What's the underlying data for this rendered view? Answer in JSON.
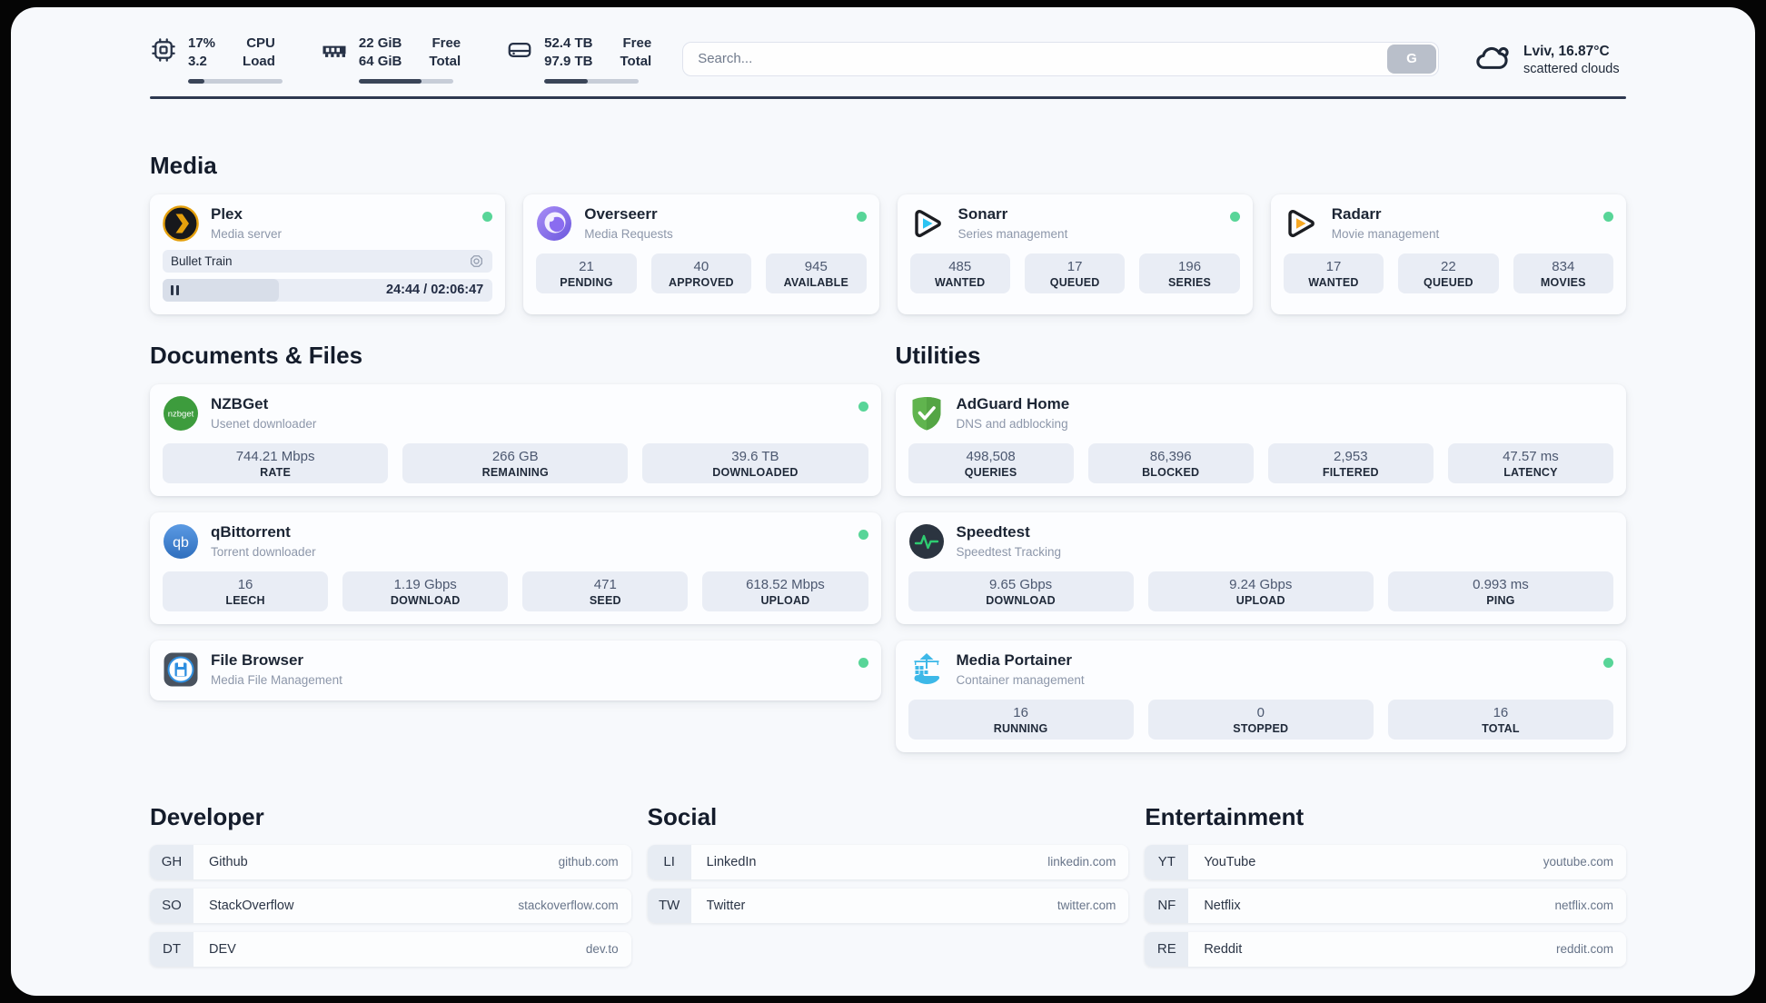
{
  "header": {
    "system_stats": [
      {
        "icon": "cpu-icon",
        "values": [
          "17%",
          "3.2"
        ],
        "labels": [
          "CPU",
          "Load"
        ],
        "usage_percent": 17
      },
      {
        "icon": "ram-icon",
        "values": [
          "22 GiB",
          "64 GiB"
        ],
        "labels": [
          "Free",
          "Total"
        ],
        "usage_percent": 66
      },
      {
        "icon": "disk-icon",
        "values": [
          "52.4 TB",
          "97.9 TB"
        ],
        "labels": [
          "Free",
          "Total"
        ],
        "usage_percent": 46
      }
    ],
    "search": {
      "placeholder": "Search...",
      "button_label": "G"
    },
    "weather": {
      "icon": "cloud-icon",
      "location_temp": "Lviv, 16.87°C",
      "condition": "scattered clouds"
    }
  },
  "sections": {
    "media": {
      "title": "Media",
      "apps": [
        {
          "name": "Plex",
          "desc": "Media server",
          "icon": "plex-icon",
          "online_dot": true,
          "now_playing": {
            "title": "Bullet Train",
            "time": "24:44 / 02:06:47"
          }
        },
        {
          "name": "Overseerr",
          "desc": "Media Requests",
          "icon": "overseerr-icon",
          "online_dot": true,
          "stats": [
            {
              "value": "21",
              "label": "PENDING"
            },
            {
              "value": "40",
              "label": "APPROVED"
            },
            {
              "value": "945",
              "label": "AVAILABLE"
            }
          ]
        },
        {
          "name": "Sonarr",
          "desc": "Series management",
          "icon": "sonarr-icon",
          "online_dot": true,
          "stats": [
            {
              "value": "485",
              "label": "WANTED"
            },
            {
              "value": "17",
              "label": "QUEUED"
            },
            {
              "value": "196",
              "label": "SERIES"
            }
          ]
        },
        {
          "name": "Radarr",
          "desc": "Movie management",
          "icon": "radarr-icon",
          "online_dot": true,
          "stats": [
            {
              "value": "17",
              "label": "WANTED"
            },
            {
              "value": "22",
              "label": "QUEUED"
            },
            {
              "value": "834",
              "label": "MOVIES"
            }
          ]
        }
      ]
    },
    "documents": {
      "title": "Documents & Files",
      "apps": [
        {
          "name": "NZBGet",
          "desc": "Usenet downloader",
          "icon": "nzbget-icon",
          "online_dot": true,
          "stats": [
            {
              "value": "744.21 Mbps",
              "label": "RATE"
            },
            {
              "value": "266 GB",
              "label": "REMAINING"
            },
            {
              "value": "39.6 TB",
              "label": "DOWNLOADED"
            }
          ]
        },
        {
          "name": "qBittorrent",
          "desc": "Torrent downloader",
          "icon": "qbittorrent-icon",
          "online_dot": true,
          "stats": [
            {
              "value": "16",
              "label": "LEECH"
            },
            {
              "value": "1.19 Gbps",
              "label": "DOWNLOAD"
            },
            {
              "value": "471",
              "label": "SEED"
            },
            {
              "value": "618.52 Mbps",
              "label": "UPLOAD"
            }
          ]
        },
        {
          "name": "File Browser",
          "desc": "Media File Management",
          "icon": "filebrowser-icon",
          "online_dot": true
        }
      ]
    },
    "utilities": {
      "title": "Utilities",
      "apps": [
        {
          "name": "AdGuard Home",
          "desc": "DNS and adblocking",
          "icon": "adguard-icon",
          "online_dot": false,
          "stats": [
            {
              "value": "498,508",
              "label": "QUERIES"
            },
            {
              "value": "86,396",
              "label": "BLOCKED"
            },
            {
              "value": "2,953",
              "label": "FILTERED"
            },
            {
              "value": "47.57 ms",
              "label": "LATENCY"
            }
          ]
        },
        {
          "name": "Speedtest",
          "desc": "Speedtest Tracking",
          "icon": "speedtest-icon",
          "online_dot": false,
          "stats": [
            {
              "value": "9.65 Gbps",
              "label": "DOWNLOAD"
            },
            {
              "value": "9.24 Gbps",
              "label": "UPLOAD"
            },
            {
              "value": "0.993 ms",
              "label": "PING"
            }
          ]
        },
        {
          "name": "Media Portainer",
          "desc": "Container management",
          "icon": "portainer-icon",
          "online_dot": true,
          "stats": [
            {
              "value": "16",
              "label": "RUNNING"
            },
            {
              "value": "0",
              "label": "STOPPED"
            },
            {
              "value": "16",
              "label": "TOTAL"
            }
          ]
        }
      ]
    },
    "bookmarks": [
      {
        "title": "Developer",
        "links": [
          {
            "abbrev": "GH",
            "name": "Github",
            "url": "github.com"
          },
          {
            "abbrev": "SO",
            "name": "StackOverflow",
            "url": "stackoverflow.com"
          },
          {
            "abbrev": "DT",
            "name": "DEV",
            "url": "dev.to"
          }
        ]
      },
      {
        "title": "Social",
        "links": [
          {
            "abbrev": "LI",
            "name": "LinkedIn",
            "url": "linkedin.com"
          },
          {
            "abbrev": "TW",
            "name": "Twitter",
            "url": "twitter.com"
          }
        ]
      },
      {
        "title": "Entertainment",
        "links": [
          {
            "abbrev": "YT",
            "name": "YouTube",
            "url": "youtube.com"
          },
          {
            "abbrev": "NF",
            "name": "Netflix",
            "url": "netflix.com"
          },
          {
            "abbrev": "RE",
            "name": "Reddit",
            "url": "reddit.com"
          }
        ]
      }
    ]
  },
  "colors": {
    "accent_green": "#58d598",
    "page_bg": "#f7f9fc",
    "stat_box_bg": "#e9edf5",
    "bar_fill": "#3a4558"
  }
}
